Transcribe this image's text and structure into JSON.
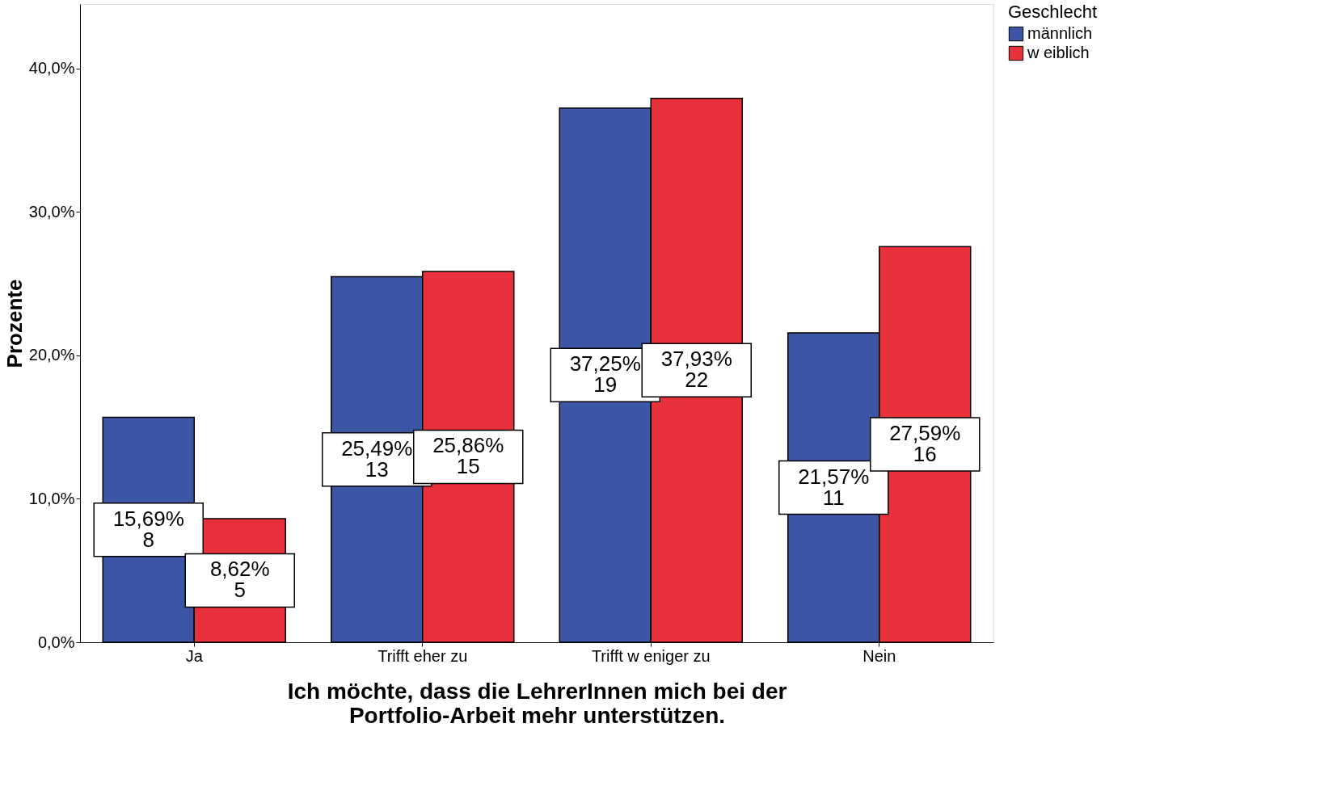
{
  "chart_data": {
    "type": "bar",
    "xlabel": "Ich möchte, dass die LehrerInnen mich bei der\nPortfolio-Arbeit mehr unterstützen.",
    "ylabel": "Prozente",
    "legend_title": "Geschlecht",
    "categories": [
      "Ja",
      "Trifft eher zu",
      "Trifft w eniger zu",
      "Nein"
    ],
    "series": [
      {
        "name": "männlich",
        "color": "#3c55a5",
        "values": [
          15.69,
          25.49,
          37.25,
          21.57
        ],
        "value_labels": [
          "15,69%\n8",
          "25,49%\n13",
          "37,25%\n19",
          "21,57%\n11"
        ]
      },
      {
        "name": "w eiblich",
        "color": "#e8313a",
        "values": [
          8.62,
          25.86,
          37.93,
          27.59
        ],
        "value_labels": [
          "8,62%\n5",
          "25,86%\n15",
          "37,93%\n22",
          "27,59%\n16"
        ]
      }
    ],
    "ylim": [
      0,
      44.5
    ],
    "yticks": [
      {
        "value": 0,
        "label": "0,0%"
      },
      {
        "value": 10,
        "label": "10,0%"
      },
      {
        "value": 20,
        "label": "20,0%"
      },
      {
        "value": 30,
        "label": "30,0%"
      },
      {
        "value": 40,
        "label": "40,0%"
      }
    ],
    "grid": false,
    "legend": "top right"
  }
}
